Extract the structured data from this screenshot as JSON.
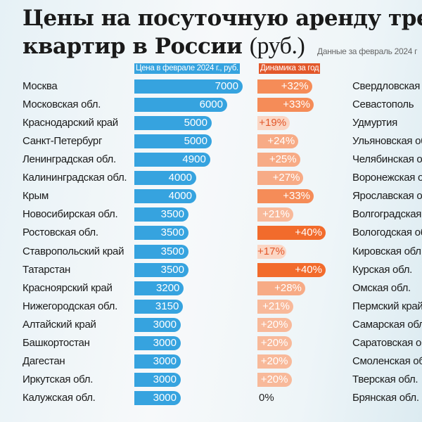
{
  "chart_data": {
    "type": "bar",
    "title": "Цены на посуточную аренду трех… квартир в России",
    "title_line1": "Цены на посуточную аренду трех",
    "title_line2": "квартир в России",
    "title_unit": "(руб.)",
    "note": "Данные за февраль 2024 г",
    "series": [
      {
        "name": "Цена в феврале 2024 г., руб.",
        "color": "#36a3df",
        "values": [
          7000,
          6000,
          5000,
          5000,
          4900,
          4000,
          4000,
          3500,
          3500,
          3500,
          3500,
          3200,
          3150,
          3000,
          3000,
          3000,
          3000,
          3000
        ]
      },
      {
        "name": "Динамика за год",
        "color": "#e2572a",
        "values": [
          32,
          33,
          19,
          24,
          25,
          27,
          33,
          21,
          40,
          17,
          40,
          28,
          21,
          20,
          20,
          20,
          20,
          0
        ],
        "labels": [
          "+32%",
          "+33%",
          "+19%",
          "+24%",
          "+25%",
          "+27%",
          "+33%",
          "+21%",
          "+40%",
          "+17%",
          "+40%",
          "+28%",
          "+21%",
          "+20%",
          "+20%",
          "+20%",
          "+20%",
          "0%"
        ]
      }
    ],
    "categories": [
      "Москва",
      "Московская обл.",
      "Краснодарский край",
      "Санкт-Петербург",
      "Ленинградская обл.",
      "Калининградская обл.",
      "Крым",
      "Новосибирская обл.",
      "Ростовская обл.",
      "Ставропольский край",
      "Татарстан",
      "Красноярский край",
      "Нижегородская обл.",
      "Алтайский край",
      "Башкортостан",
      "Дагестан",
      "Иркутская обл.",
      "Калужская обл."
    ],
    "next_column_categories": [
      "Свердловская обл.",
      "Севастополь",
      "Удмуртия",
      "Ульяновская обл.",
      "Челябинская обл.",
      "Воронежская обл.",
      "Ярославская обл.",
      "Волгоградская обл.",
      "Вологодская обл.",
      "Кировская обл.",
      "Курская обл.",
      "Омская обл.",
      "Пермский край",
      "Самарская обл.",
      "Саратовская обл.",
      "Смоленская обл.",
      "Тверская обл.",
      "Брянская обл."
    ],
    "legend": "top"
  }
}
